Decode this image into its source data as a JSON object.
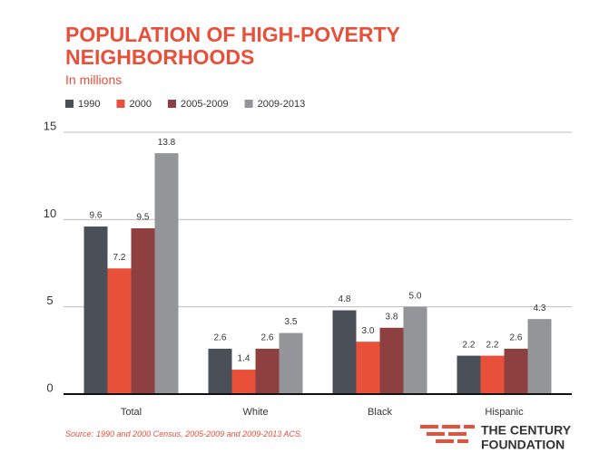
{
  "chart_data": {
    "type": "bar",
    "title": "POPULATION OF HIGH-POVERTY NEIGHBORHOODS",
    "subtitle": "In millions",
    "categories": [
      "Total",
      "White",
      "Black",
      "Hispanic"
    ],
    "series": [
      {
        "name": "1990",
        "color": "#4b4f57",
        "values": [
          9.6,
          2.6,
          4.8,
          2.2
        ],
        "value_labels": [
          "9.6",
          "2.6",
          "4.8",
          "2.2"
        ]
      },
      {
        "name": "2000",
        "color": "#e8503a",
        "values": [
          7.2,
          1.4,
          3.0,
          2.2
        ],
        "value_labels": [
          "7.2",
          "1.4",
          "3.0",
          "2.2"
        ]
      },
      {
        "name": "2005-2009",
        "color": "#8e3f3f",
        "values": [
          9.5,
          2.6,
          3.8,
          2.6
        ],
        "value_labels": [
          "9.5",
          "2.6",
          "3.8",
          "2.6"
        ]
      },
      {
        "name": "2009-2013",
        "color": "#939598",
        "values": [
          13.8,
          3.5,
          5.0,
          4.3
        ],
        "value_labels": [
          "13.8",
          "3.5",
          "5.0",
          "4.3"
        ]
      }
    ],
    "ylim": [
      0,
      15
    ],
    "yticks": [
      0,
      5,
      10,
      15
    ],
    "grid": true,
    "legend": "top-left",
    "source_label": "Source:",
    "source": "1990 and 2000 Census, 2005-2009 and 2009-2013 ACS.",
    "logo": [
      "THE CENTURY",
      "FOUNDATION"
    ]
  }
}
